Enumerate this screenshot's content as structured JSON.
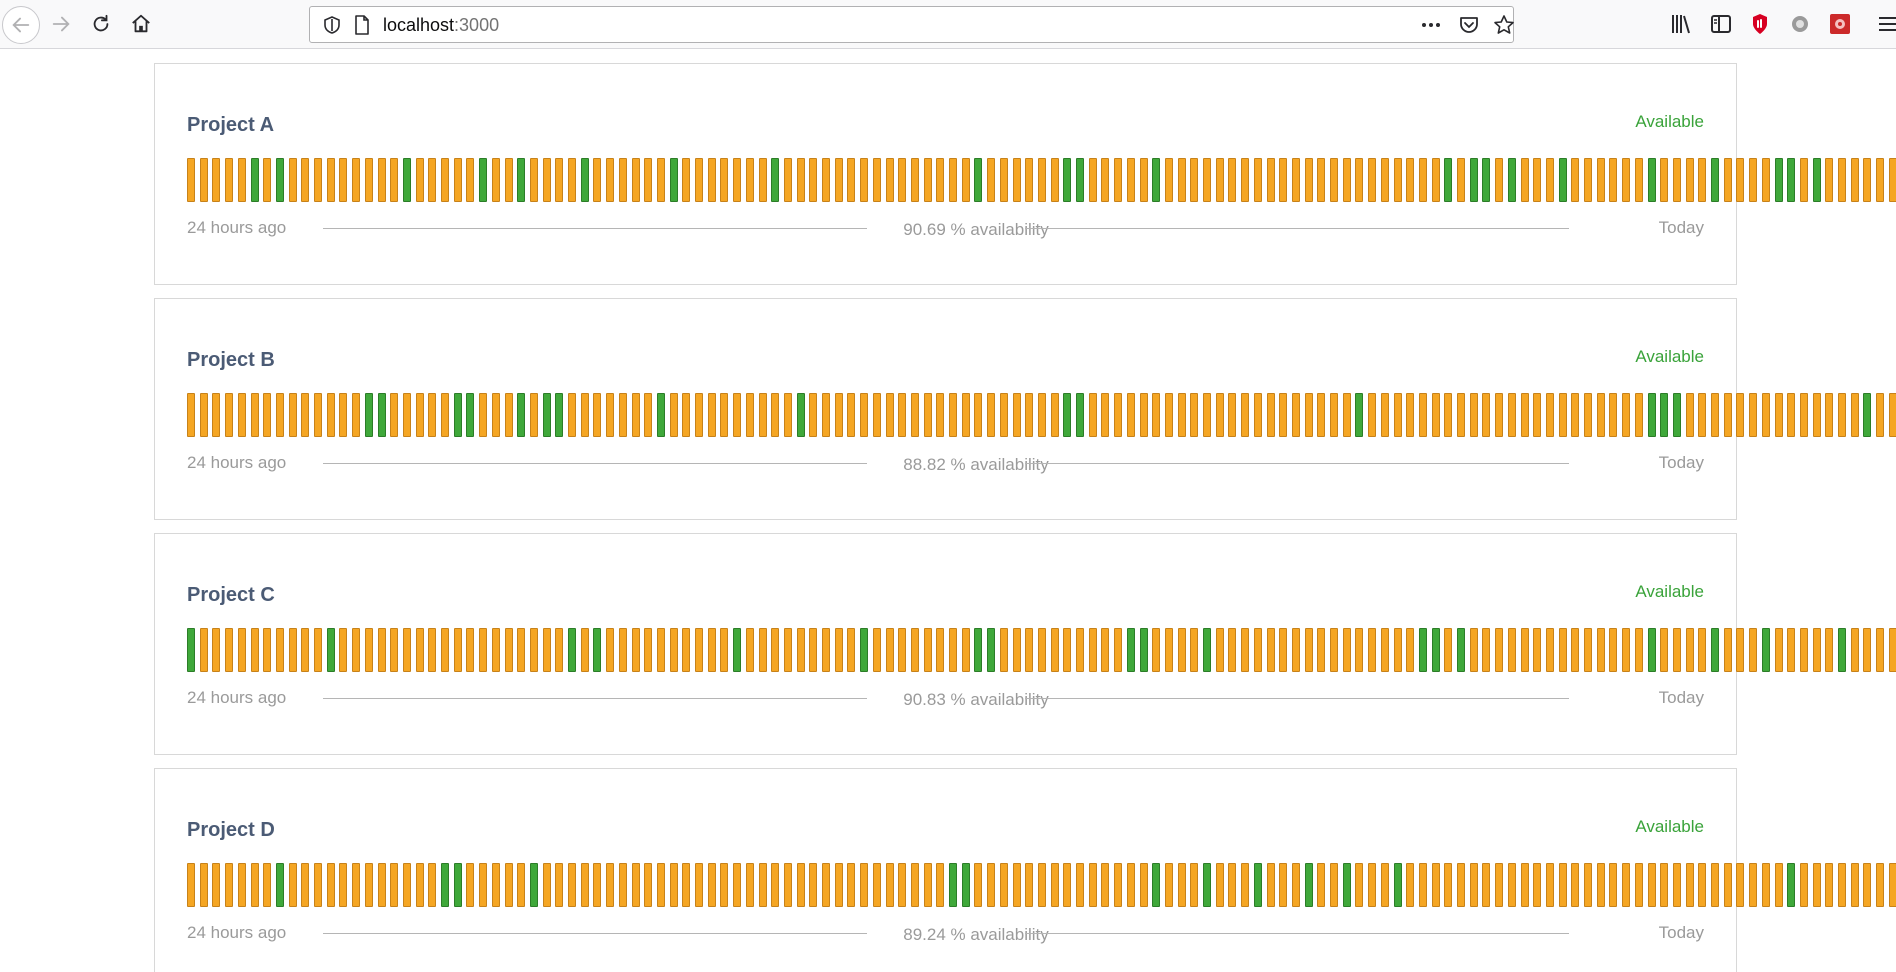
{
  "browser": {
    "url_host": "localhost",
    "url_port": ":3000"
  },
  "colors": {
    "up": "#f5a623",
    "ok": "#3fa83a",
    "status": "#3aa33a",
    "title": "#4b5b75"
  },
  "projects": [
    {
      "name": "Project A",
      "status": "Available",
      "left_label": "24 hours ago",
      "right_label": "Today",
      "availability": "90.69 % availability",
      "bars": "yyyyygygyyyyyyyyygyyyyygyygyyyygyyyyyygyyyyyyygyyyyyyyyyyyyyyygyyyyyyggyyyyygyyyyyyyyyyyyyyyyyyyyyygyggygyyygyyyyyygyyyygyyyyggygyyyyyyyygyyyy"
    },
    {
      "name": "Project B",
      "status": "Available",
      "left_label": "24 hours ago",
      "right_label": "Today",
      "availability": "88.82 % availability",
      "bars": "yyyyyyyyyyyyyyggyyyyyggyyygyggyyyyyyygyyyyyyyyyygyyyyyyyyyyyyyyyyyyyyggyyyyyyyyyyyyyyyyyyyyygyyyyyyyyyyyyyyyyyyyyyygggyyyyyyyyyyyyyygyyyygyyyyyy"
    },
    {
      "name": "Project C",
      "status": "Available",
      "left_label": "24 hours ago",
      "right_label": "Today",
      "availability": "90.83 % availability",
      "bars": "gyyyyyyyyyygyyyyyyyyyyyyyyyyyygygyyyyyyyyyygyyyyyyyyygyyyyyyyyggyyyyyyyyyyggyyyygyyyyyyyyyyyyyyyyggygyyyyyyyyyyyyyygyyyygyyygyyyyygyyyygyygyyyyy"
    },
    {
      "name": "Project D",
      "status": "Available",
      "left_label": "24 hours ago",
      "right_label": "Today",
      "availability": "89.24 % availability",
      "bars": "yyyyyyygyyyyyyyyyyyyggyyyyygyyyyyyyyyyyyyyyyyyyyyyyyyyyyyyyyggyyyyyyyyyyyyyygyyygyyygyyygyygyyygyyyyyyyyyyyyyyyyyyyyyyyyyyyyyygyyyyyyyygggyyyyy"
    }
  ]
}
